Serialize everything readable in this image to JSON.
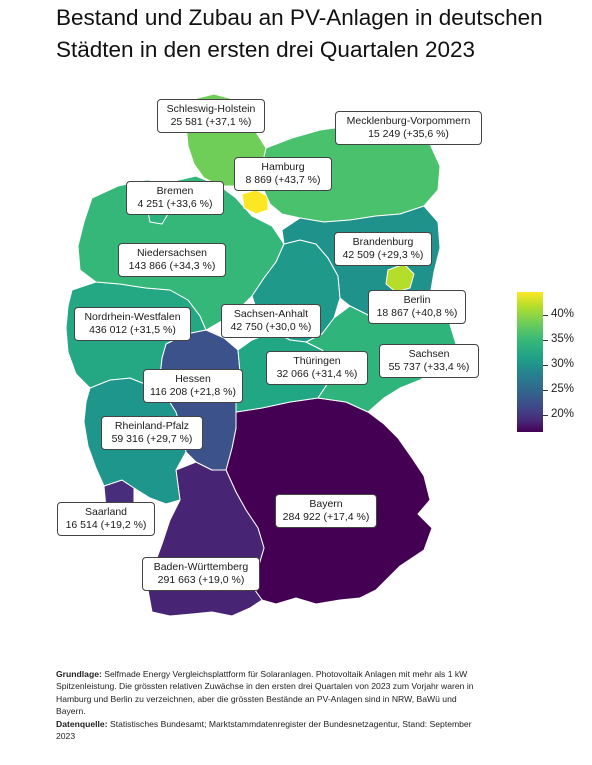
{
  "title": "Bestand und Zubau an PV-Anlagen in deutschen Städten in den ersten drei Quartalen 2023",
  "states": [
    {
      "name": "Schleswig-Holstein",
      "value": "25 581 (+37,1 %)",
      "growth_pct": 37.1,
      "color": "#6ece58"
    },
    {
      "name": "Mecklenburg-Vorpommern",
      "value": "15 249 (+35,6 %)",
      "growth_pct": 35.6,
      "color": "#4ac16d"
    },
    {
      "name": "Hamburg",
      "value": "8 869 (+43,7 %)",
      "growth_pct": 43.7,
      "color": "#fde725"
    },
    {
      "name": "Bremen",
      "value": "4 251 (+33,6 %)",
      "growth_pct": 33.6,
      "color": "#2db27d"
    },
    {
      "name": "Niedersachsen",
      "value": "143 866 (+34,3 %)",
      "growth_pct": 34.3,
      "color": "#35b779"
    },
    {
      "name": "Brandenburg",
      "value": "42 509 (+29,3 %)",
      "growth_pct": 29.3,
      "color": "#20928c"
    },
    {
      "name": "Berlin",
      "value": "18 867 (+40,8 %)",
      "growth_pct": 40.8,
      "color": "#b5de2b"
    },
    {
      "name": "Nordrhein-Westfalen",
      "value": "436 012 (+31,5 %)",
      "growth_pct": 31.5,
      "color": "#24a884"
    },
    {
      "name": "Sachsen-Anhalt",
      "value": "42 750 (+30,0 %)",
      "growth_pct": 30.0,
      "color": "#1f9a8a"
    },
    {
      "name": "Thüringen",
      "value": "32 066 (+31,4 %)",
      "growth_pct": 31.4,
      "color": "#22a785"
    },
    {
      "name": "Sachsen",
      "value": "55 737 (+33,4 %)",
      "growth_pct": 33.4,
      "color": "#2fb47c"
    },
    {
      "name": "Hessen",
      "value": "116 208 (+21,8 %)",
      "growth_pct": 21.8,
      "color": "#3b528b"
    },
    {
      "name": "Rheinland-Pfalz",
      "value": "59 316 (+29,7 %)",
      "growth_pct": 29.7,
      "color": "#1f968b"
    },
    {
      "name": "Saarland",
      "value": "16 514 (+19,2 %)",
      "growth_pct": 19.2,
      "color": "#472d7b"
    },
    {
      "name": "Bayern",
      "value": "284 922 (+17,4 %)",
      "growth_pct": 17.4,
      "color": "#440154"
    },
    {
      "name": "Baden-Württemberg",
      "value": "291 663 (+19,0 %)",
      "growth_pct": 19.0,
      "color": "#482475"
    }
  ],
  "legend": {
    "ticks": [
      "40%",
      "35%",
      "30%",
      "25%",
      "20%"
    ],
    "colorscale": [
      "#fde725",
      "#35b779",
      "#21918c",
      "#3b528b",
      "#440154"
    ]
  },
  "footnote": {
    "basis_label": "Grundlage:",
    "basis_text": "Selfmade Energy Vergleichsplattform für Solaranlagen. Photovoltaik Anlagen mit mehr als 1 kW Spitzenleistung. Die grössten relativen Zuwächse in den ersten drei Quartalen von 2023 zum Vorjahr waren in Hamburg und Berlin zu verzeichnen, aber die grössten Bestände an PV-Anlagen sind in NRW, BaWü und Bayern.",
    "source_label": "Datenquelle:",
    "source_text": "Statistisches Bundesamt; Marktstammdatenregister der Bundesnetzagentur, Stand: September 2023"
  }
}
